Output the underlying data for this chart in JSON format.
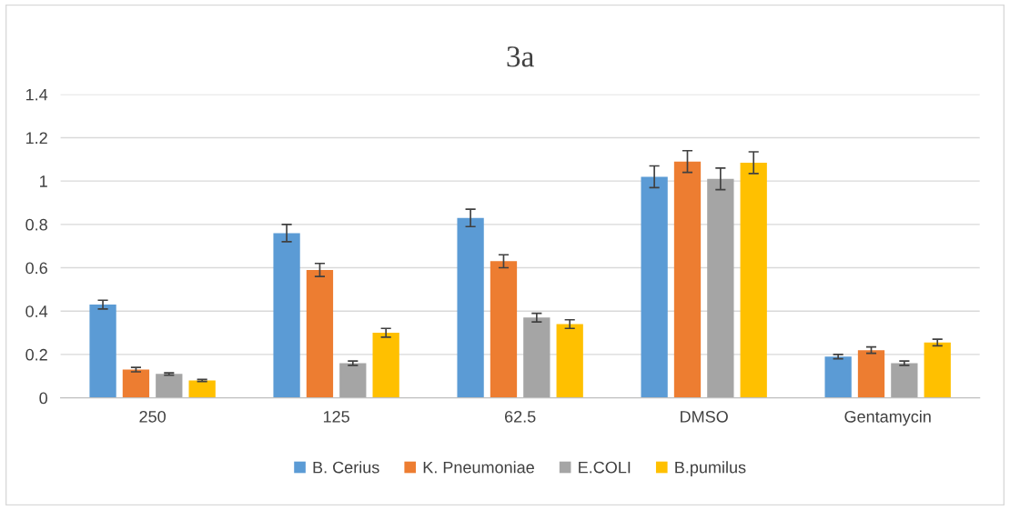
{
  "chart_data": {
    "type": "bar",
    "title": "3a",
    "categories": [
      "250",
      "125",
      "62.5",
      "DMSO",
      "Gentamycin"
    ],
    "series": [
      {
        "name": "B. Cerius",
        "color": "#5b9bd5",
        "values": [
          0.43,
          0.76,
          0.83,
          1.02,
          0.19
        ],
        "errors": [
          0.02,
          0.04,
          0.04,
          0.05,
          0.01
        ]
      },
      {
        "name": "K. Pneumoniae",
        "color": "#ed7d31",
        "values": [
          0.13,
          0.59,
          0.63,
          1.09,
          0.22
        ],
        "errors": [
          0.01,
          0.03,
          0.03,
          0.05,
          0.015
        ]
      },
      {
        "name": "E.COLI",
        "color": "#a5a5a5",
        "values": [
          0.11,
          0.16,
          0.37,
          1.01,
          0.16
        ],
        "errors": [
          0.005,
          0.01,
          0.02,
          0.05,
          0.01
        ]
      },
      {
        "name": "B.pumilus",
        "color": "#ffc000",
        "values": [
          0.08,
          0.3,
          0.34,
          1.085,
          0.255
        ],
        "errors": [
          0.005,
          0.02,
          0.02,
          0.05,
          0.015
        ]
      }
    ],
    "ylim": [
      0,
      1.4
    ],
    "yticks": [
      0,
      0.2,
      0.4,
      0.6,
      0.8,
      1,
      1.2,
      1.4
    ],
    "grid": "y",
    "legend": "bottom"
  }
}
